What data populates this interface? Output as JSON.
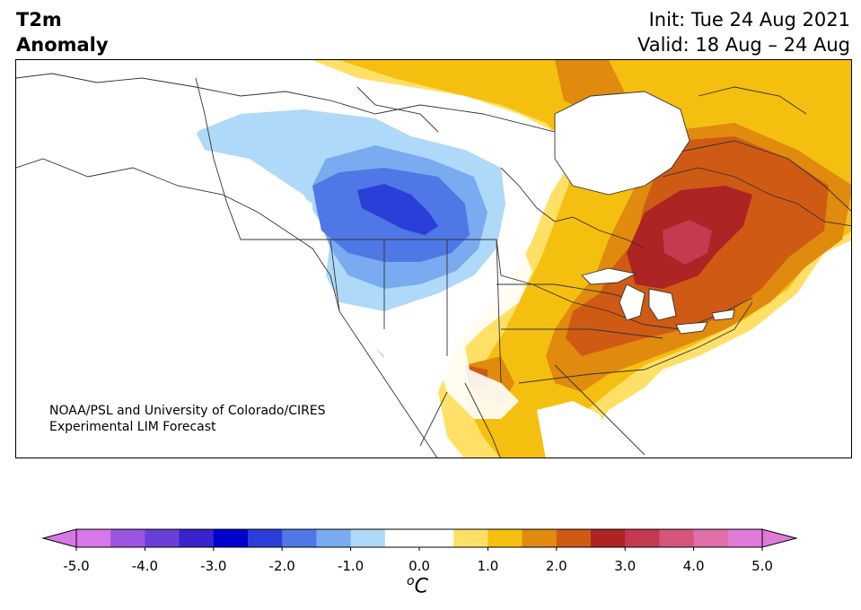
{
  "title": {
    "left_line1": "T2m",
    "left_line2": "Anomaly",
    "right_line1": "Init: Tue 24 Aug 2021",
    "right_line2": "Valid: 18 Aug – 24 Aug"
  },
  "credit": {
    "line1": "NOAA/PSL and University of Colorado/CIRES",
    "line2": "Experimental LIM Forecast"
  },
  "colorbar": {
    "ticks": [
      "-5.0",
      "-4.0",
      "-3.0",
      "-2.0",
      "-1.0",
      "0.0",
      "1.0",
      "2.0",
      "3.0",
      "4.0",
      "5.0"
    ],
    "unit_sup": "o",
    "unit_main": "C",
    "min": -5.0,
    "max": 5.0,
    "step": 0.5,
    "colors": [
      "#d877e8",
      "#9c55e0",
      "#6a3ed8",
      "#3a22cc",
      "#0000cc",
      "#2a3ed8",
      "#4f77e6",
      "#7aaaf0",
      "#aed9f8",
      "#ffffff",
      "#ffffff",
      "#ffe066",
      "#f5bf10",
      "#e08a0e",
      "#cf5a14",
      "#ae2323",
      "#c43a50",
      "#d6557c",
      "#e06ea8",
      "#e07ad8"
    ],
    "extend_low_color": "#d877e8",
    "extend_high_color": "#e07ad8"
  }
}
